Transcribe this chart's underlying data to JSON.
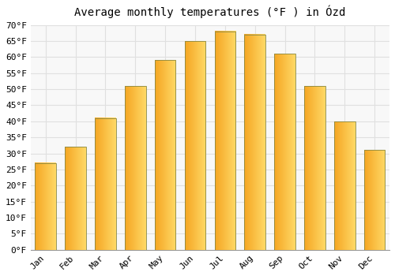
{
  "title": "Average monthly temperatures (°F ) in Ózd",
  "months": [
    "Jan",
    "Feb",
    "Mar",
    "Apr",
    "May",
    "Jun",
    "Jul",
    "Aug",
    "Sep",
    "Oct",
    "Nov",
    "Dec"
  ],
  "values": [
    27,
    32,
    41,
    51,
    59,
    65,
    68,
    67,
    61,
    51,
    40,
    31
  ],
  "bar_color_left": "#F5A623",
  "bar_color_right": "#FFD966",
  "bar_edge_color": "#888844",
  "background_color": "#ffffff",
  "plot_bg_color": "#f8f8f8",
  "grid_color": "#e0e0e0",
  "ylim": [
    0,
    70
  ],
  "ytick_step": 5,
  "title_fontsize": 10,
  "tick_fontsize": 8,
  "font_family": "monospace"
}
